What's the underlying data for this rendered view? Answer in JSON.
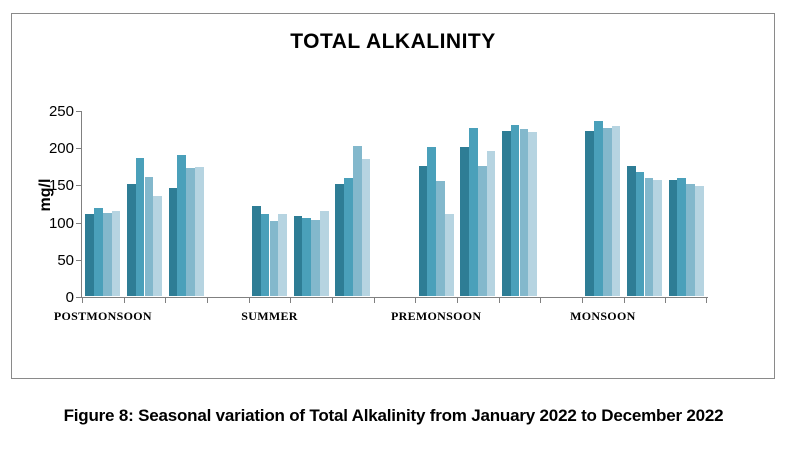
{
  "figure": {
    "caption": "Figure 8: Seasonal variation of Total Alkalinity from January 2022 to December 2022"
  },
  "chart_data": {
    "type": "bar",
    "title": "TOTAL ALKALINITY",
    "xlabel": "",
    "ylabel": "mg/l",
    "ylim": [
      0,
      250
    ],
    "yticks": [
      0,
      50,
      100,
      150,
      200,
      250
    ],
    "grid": false,
    "legend": "none",
    "bar_colors": [
      "#2E7D95",
      "#4AA0BA",
      "#83B8CC",
      "#B6D4E1"
    ],
    "categories": [
      "POSTMONSOON",
      "SUMMER",
      "PREMONSOON",
      "MONSOON"
    ],
    "groups": [
      {
        "season": "POSTMONSOON",
        "values": [
          110,
          118,
          112,
          114
        ]
      },
      {
        "season": "POSTMONSOON",
        "values": [
          150,
          185,
          160,
          135
        ]
      },
      {
        "season": "POSTMONSOON",
        "values": [
          145,
          190,
          172,
          174
        ]
      },
      {
        "season": "SUMMER",
        "values": [
          121,
          110,
          101,
          110
        ]
      },
      {
        "season": "SUMMER",
        "values": [
          108,
          105,
          102,
          114
        ]
      },
      {
        "season": "SUMMER",
        "values": [
          150,
          158,
          201,
          184
        ]
      },
      {
        "season": "PREMONSOON",
        "values": [
          175,
          200,
          155,
          110
        ]
      },
      {
        "season": "PREMONSOON",
        "values": [
          200,
          226,
          175,
          195
        ]
      },
      {
        "season": "PREMONSOON",
        "values": [
          222,
          230,
          225,
          220
        ]
      },
      {
        "season": "MONSOON",
        "values": [
          222,
          235,
          226,
          229
        ]
      },
      {
        "season": "MONSOON",
        "values": [
          175,
          167,
          158,
          156
        ]
      },
      {
        "season": "MONSOON",
        "values": [
          156,
          159,
          150,
          148
        ]
      }
    ]
  }
}
